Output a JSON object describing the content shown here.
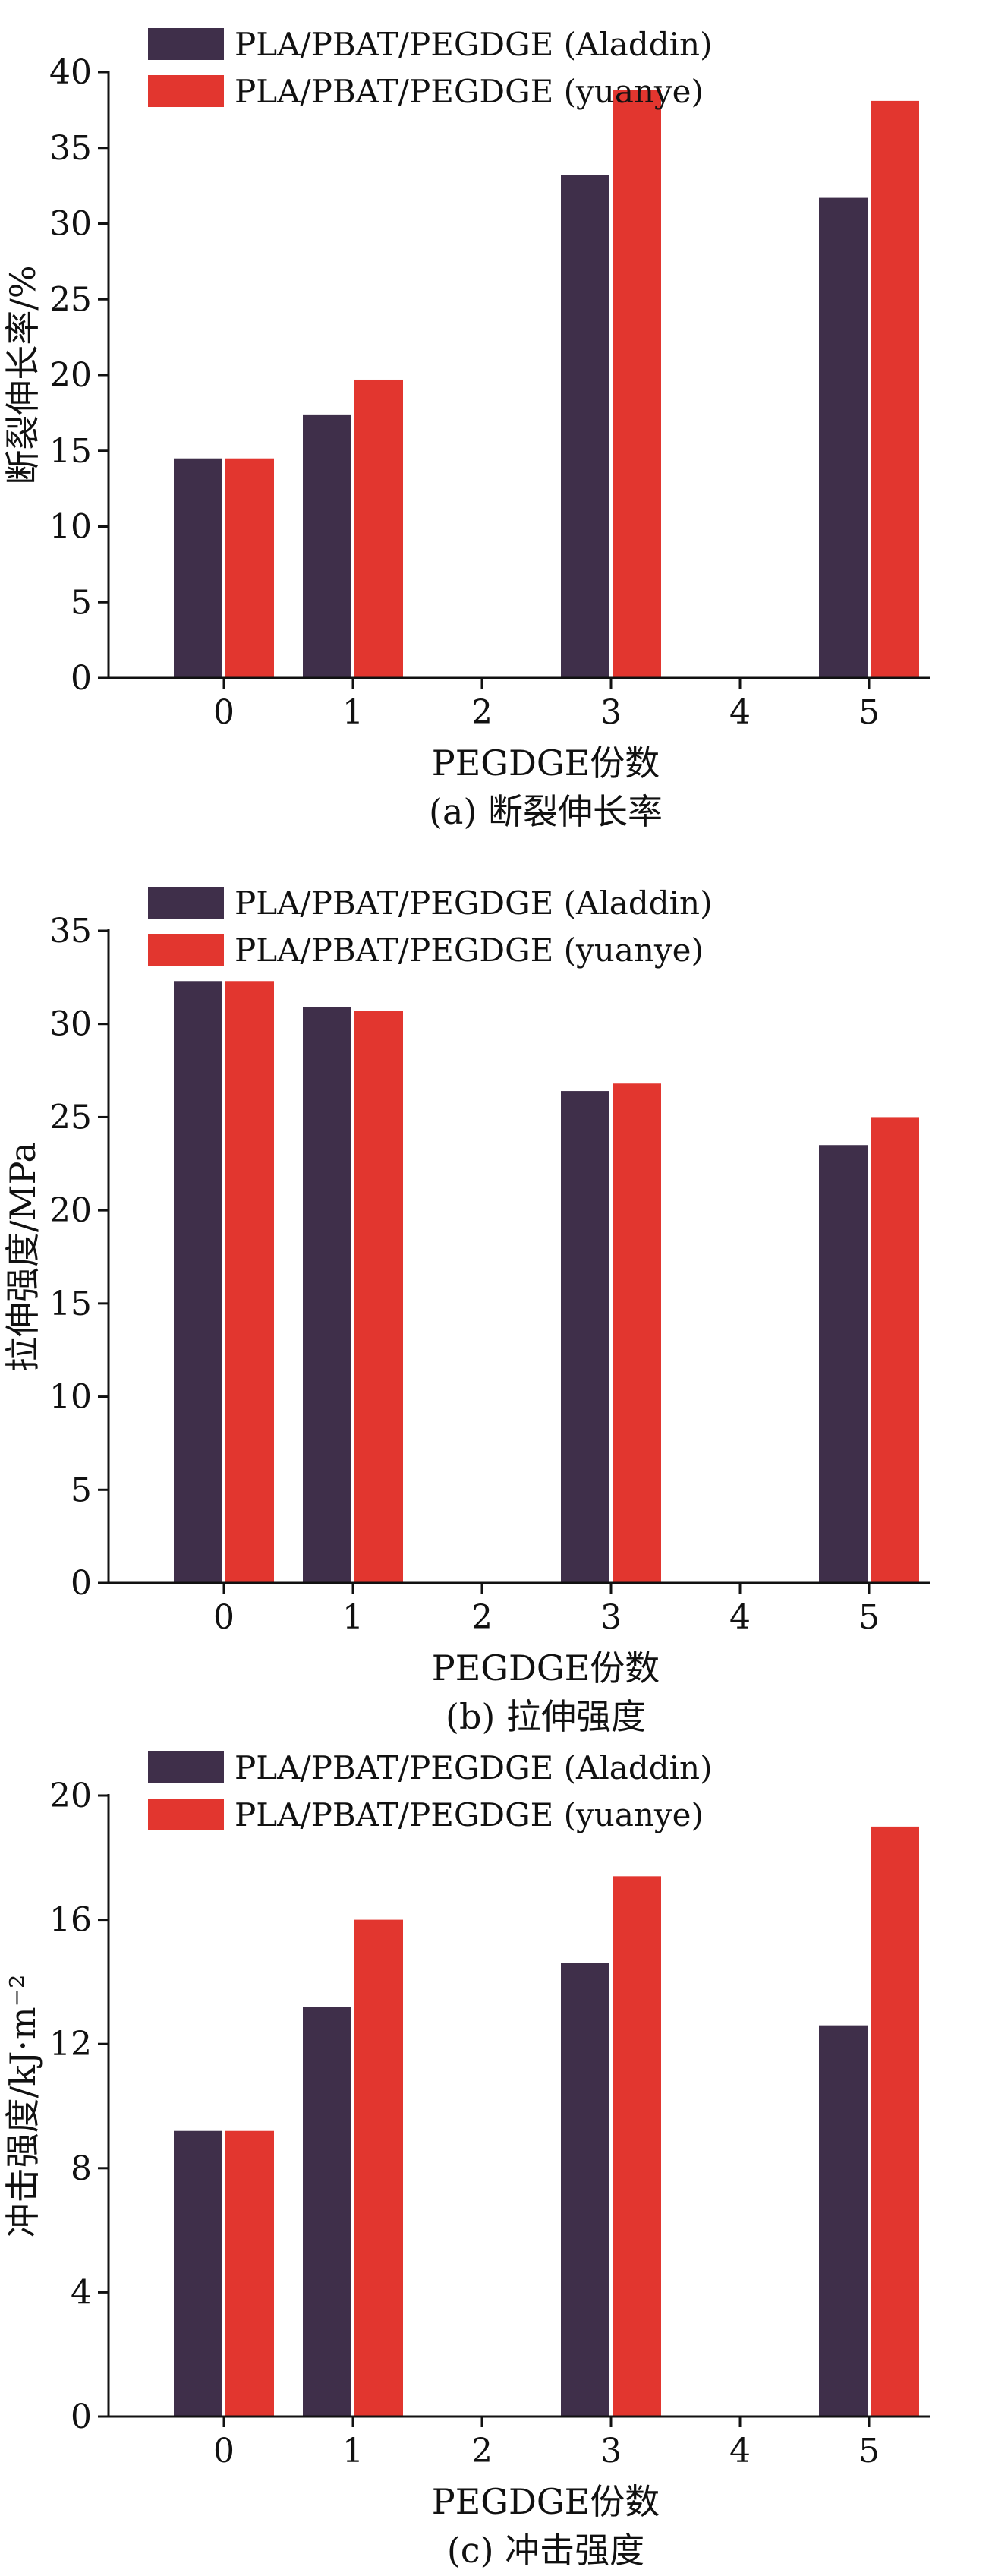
{
  "chart_data": [
    {
      "type": "bar",
      "caption": "(a) 断裂伸长率",
      "xlabel": "PEGDGE份数",
      "ylabel": "断裂伸长率/%",
      "ylim": [
        0,
        40
      ],
      "yticks": [
        0,
        5,
        10,
        15,
        20,
        25,
        30,
        35,
        40
      ],
      "categories": [
        "0",
        "1",
        "2",
        "3",
        "4",
        "5"
      ],
      "series": [
        {
          "name": "PLA/PBAT/PEGDGE (Aladdin)",
          "color": "#3f2f4a",
          "values": [
            14.5,
            17.4,
            null,
            33.2,
            null,
            31.7
          ]
        },
        {
          "name": "PLA/PBAT/PEGDGE (yuanye)",
          "color": "#e2362f",
          "values": [
            14.5,
            19.7,
            null,
            38.8,
            null,
            38.1
          ]
        }
      ],
      "legend_position": "top-left"
    },
    {
      "type": "bar",
      "caption": "(b) 拉伸强度",
      "xlabel": "PEGDGE份数",
      "ylabel": "拉伸强度/MPa",
      "ylim": [
        0,
        35
      ],
      "yticks": [
        0,
        5,
        10,
        15,
        20,
        25,
        30,
        35
      ],
      "categories": [
        "0",
        "1",
        "2",
        "3",
        "4",
        "5"
      ],
      "series": [
        {
          "name": "PLA/PBAT/PEGDGE (Aladdin)",
          "color": "#3f2f4a",
          "values": [
            32.3,
            30.9,
            null,
            26.4,
            null,
            23.5
          ]
        },
        {
          "name": "PLA/PBAT/PEGDGE (yuanye)",
          "color": "#e2362f",
          "values": [
            32.3,
            30.7,
            null,
            26.8,
            null,
            25.0
          ]
        }
      ],
      "legend_position": "top-left"
    },
    {
      "type": "bar",
      "caption": "(c) 冲击强度",
      "xlabel": "PEGDGE份数",
      "ylabel": "冲击强度/kJ·m⁻²",
      "ylim": [
        0,
        20
      ],
      "yticks": [
        0,
        4,
        8,
        12,
        16,
        20
      ],
      "categories": [
        "0",
        "1",
        "2",
        "3",
        "4",
        "5"
      ],
      "series": [
        {
          "name": "PLA/PBAT/PEGDGE (Aladdin)",
          "color": "#3f2f4a",
          "values": [
            9.2,
            13.2,
            null,
            14.6,
            null,
            12.6
          ]
        },
        {
          "name": "PLA/PBAT/PEGDGE (yuanye)",
          "color": "#e2362f",
          "values": [
            9.2,
            16.0,
            null,
            17.4,
            null,
            19.0
          ]
        }
      ],
      "legend_position": "top-left"
    }
  ]
}
